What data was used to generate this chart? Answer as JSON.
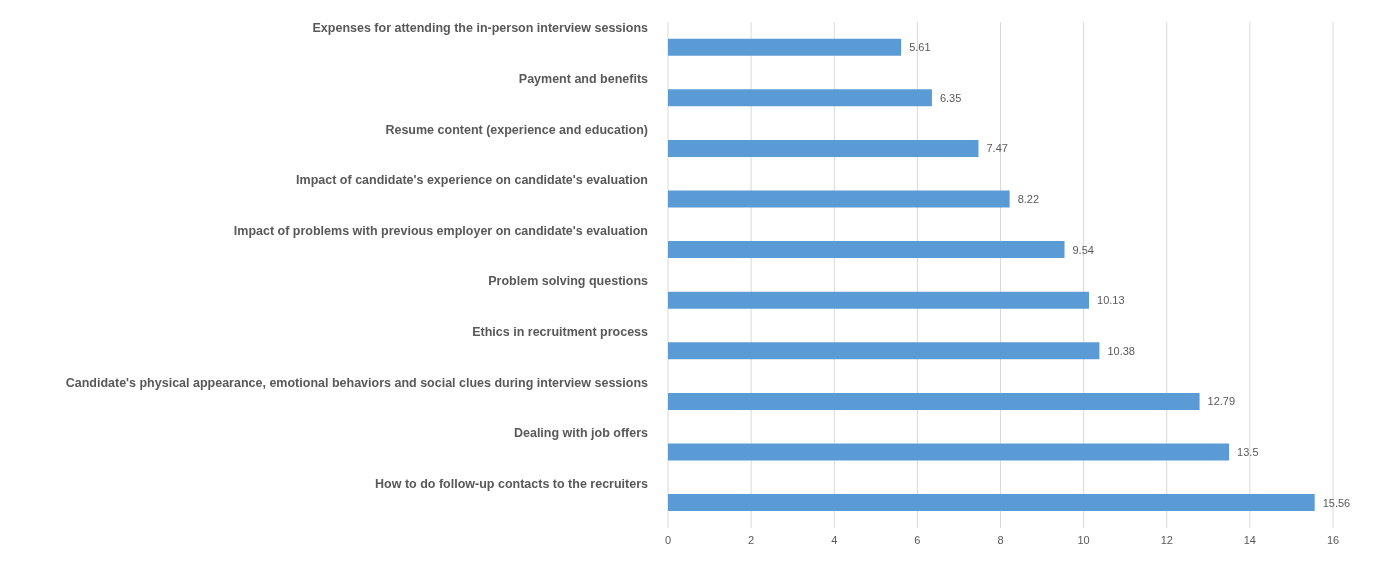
{
  "chart_data": {
    "type": "bar",
    "orientation": "horizontal",
    "categories": [
      "Expenses for attending the in-person interview sessions",
      "Payment and benefits",
      "Resume content (experience and education)",
      "Impact of candidate's experience on candidate's evaluation",
      "Impact of problems with previous employer on candidate's evaluation",
      "Problem solving questions",
      "Ethics in recruitment process",
      "Candidate's physical appearance, emotional behaviors and social clues during interview sessions",
      "Dealing with job offers",
      "How to do follow-up contacts to the recruiters"
    ],
    "values": [
      5.61,
      6.35,
      7.47,
      8.22,
      9.54,
      10.13,
      10.38,
      12.79,
      13.5,
      15.56
    ],
    "color": "#5b9bd5",
    "data_labels": true,
    "grid": "x",
    "xlim": [
      0,
      16
    ],
    "xticks": [
      0,
      2,
      4,
      6,
      8,
      10,
      12,
      14,
      16
    ]
  }
}
